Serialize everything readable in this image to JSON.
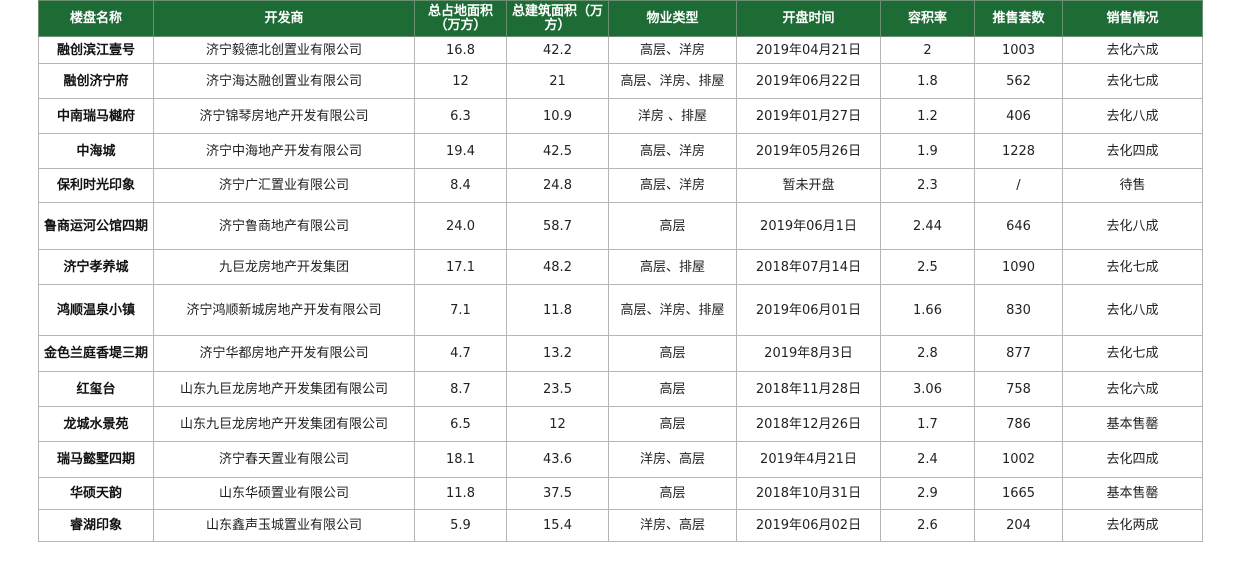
{
  "header_color": "#1d6b35",
  "columns": [
    "楼盘名称",
    "开发商",
    "总占地面积（万方）",
    "总建筑面积（万方）",
    "物业类型",
    "开盘时间",
    "容积率",
    "推售套数",
    "销售情况"
  ],
  "rows": [
    [
      "融创滨江壹号",
      "济宁毅德北创置业有限公司",
      "16.8",
      "42.2",
      "高层、洋房",
      "2019年04月21日",
      "2",
      "1003",
      "去化六成"
    ],
    [
      "融创济宁府",
      "济宁海达融创置业有限公司",
      "12",
      "21",
      "高层、洋房、排屋",
      "2019年06月22日",
      "1.8",
      "562",
      "去化七成"
    ],
    [
      "中南瑞马樾府",
      "济宁锦琴房地产开发有限公司",
      "6.3",
      "10.9",
      "洋房 、排屋",
      "2019年01月27日",
      "1.2",
      "406",
      "去化八成"
    ],
    [
      "中海城",
      "济宁中海地产开发有限公司",
      "19.4",
      "42.5",
      "高层、洋房",
      "2019年05月26日",
      "1.9",
      "1228",
      "去化四成"
    ],
    [
      "保利时光印象",
      "济宁广汇置业有限公司",
      "8.4",
      "24.8",
      "高层、洋房",
      "暂未开盘",
      "2.3",
      "/",
      "待售"
    ],
    [
      "鲁商运河公馆四期",
      "济宁鲁商地产有限公司",
      "24.0",
      "58.7",
      "高层",
      "2019年06月1日",
      "2.44",
      "646",
      "去化八成"
    ],
    [
      "济宁孝养城",
      "九巨龙房地产开发集团",
      "17.1",
      "48.2",
      "高层、排屋",
      "2018年07月14日",
      "2.5",
      "1090",
      "去化七成"
    ],
    [
      "鸿顺温泉小镇",
      "济宁鸿顺新城房地产开发有限公司",
      "7.1",
      "11.8",
      "高层、洋房、排屋",
      "2019年06月01日",
      "1.66",
      "830",
      "去化八成"
    ],
    [
      "金色兰庭香堤三期",
      "济宁华都房地产开发有限公司",
      "4.7",
      "13.2",
      "高层",
      "2019年8月3日",
      "2.8",
      "877",
      "去化七成"
    ],
    [
      "红玺台",
      "山东九巨龙房地产开发集团有限公司",
      "8.7",
      "23.5",
      "高层",
      "2018年11月28日",
      "3.06",
      "758",
      "去化六成"
    ],
    [
      "龙城水景苑",
      "山东九巨龙房地产开发集团有限公司",
      "6.5",
      "12",
      "高层",
      "2018年12月26日",
      "1.7",
      "786",
      "基本售罄"
    ],
    [
      "瑞马懿墅四期",
      "济宁春天置业有限公司",
      "18.1",
      "43.6",
      "洋房、高层",
      "2019年4月21日",
      "2.4",
      "1002",
      "去化四成"
    ],
    [
      "华硕天韵",
      "山东华硕置业有限公司",
      "11.8",
      "37.5",
      "高层",
      "2018年10月31日",
      "2.9",
      "1665",
      "基本售罄"
    ],
    [
      "睿湖印象",
      "山东鑫声玉城置业有限公司",
      "5.9",
      "15.4",
      "洋房、高层",
      "2019年06月02日",
      "2.6",
      "204",
      "去化两成"
    ]
  ]
}
